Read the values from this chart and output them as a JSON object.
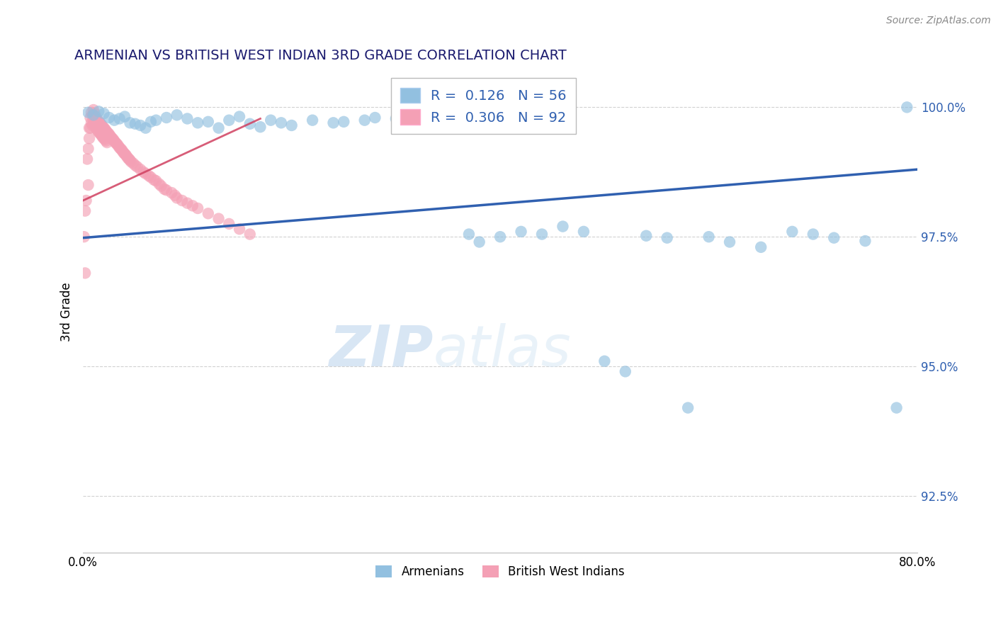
{
  "title": "ARMENIAN VS BRITISH WEST INDIAN 3RD GRADE CORRELATION CHART",
  "source": "Source: ZipAtlas.com",
  "ylabel": "3rd Grade",
  "xlim": [
    0.0,
    0.8
  ],
  "ylim": [
    0.914,
    1.007
  ],
  "yticks": [
    0.925,
    0.95,
    0.975,
    1.0
  ],
  "ytick_labels": [
    "92.5%",
    "95.0%",
    "97.5%",
    "100.0%"
  ],
  "xticks": [
    0.0,
    0.1,
    0.2,
    0.3,
    0.4,
    0.5,
    0.6,
    0.7,
    0.8
  ],
  "blue_color": "#92C0E0",
  "pink_color": "#F4A0B5",
  "trend_blue_color": "#3060B0",
  "trend_pink_color": "#D04060",
  "legend_r_blue": "0.126",
  "legend_n_blue": "56",
  "legend_r_pink": "0.306",
  "legend_n_pink": "92",
  "watermark_zip": "ZIP",
  "watermark_atlas": "atlas",
  "blue_scatter_x": [
    0.005,
    0.01,
    0.015,
    0.02,
    0.025,
    0.03,
    0.035,
    0.04,
    0.045,
    0.05,
    0.055,
    0.06,
    0.065,
    0.07,
    0.08,
    0.09,
    0.1,
    0.11,
    0.12,
    0.13,
    0.14,
    0.15,
    0.16,
    0.17,
    0.18,
    0.19,
    0.2,
    0.22,
    0.24,
    0.25,
    0.27,
    0.28,
    0.3,
    0.32,
    0.35,
    0.37,
    0.38,
    0.4,
    0.42,
    0.44,
    0.46,
    0.48,
    0.5,
    0.52,
    0.54,
    0.56,
    0.58,
    0.6,
    0.62,
    0.65,
    0.68,
    0.7,
    0.72,
    0.75,
    0.78,
    0.79
  ],
  "blue_scatter_y": [
    0.999,
    0.9985,
    0.9992,
    0.9988,
    0.998,
    0.9975,
    0.9978,
    0.9982,
    0.997,
    0.9968,
    0.9965,
    0.996,
    0.9972,
    0.9975,
    0.998,
    0.9985,
    0.9978,
    0.997,
    0.9972,
    0.996,
    0.9975,
    0.9982,
    0.9968,
    0.9962,
    0.9975,
    0.997,
    0.9965,
    0.9975,
    0.997,
    0.9972,
    0.9975,
    0.998,
    0.9978,
    0.9975,
    0.9972,
    0.9755,
    0.974,
    0.975,
    0.976,
    0.9755,
    0.977,
    0.976,
    0.951,
    0.949,
    0.9752,
    0.9748,
    0.942,
    0.975,
    0.974,
    0.973,
    0.976,
    0.9755,
    0.9748,
    0.9742,
    0.942,
    1.0
  ],
  "pink_scatter_x": [
    0.001,
    0.002,
    0.003,
    0.004,
    0.005,
    0.005,
    0.006,
    0.006,
    0.007,
    0.007,
    0.008,
    0.008,
    0.009,
    0.009,
    0.01,
    0.01,
    0.011,
    0.011,
    0.012,
    0.012,
    0.013,
    0.013,
    0.014,
    0.014,
    0.015,
    0.015,
    0.016,
    0.016,
    0.017,
    0.017,
    0.018,
    0.018,
    0.019,
    0.019,
    0.02,
    0.02,
    0.021,
    0.021,
    0.022,
    0.022,
    0.023,
    0.023,
    0.024,
    0.025,
    0.026,
    0.027,
    0.028,
    0.029,
    0.03,
    0.031,
    0.032,
    0.033,
    0.034,
    0.035,
    0.036,
    0.037,
    0.038,
    0.039,
    0.04,
    0.041,
    0.042,
    0.043,
    0.044,
    0.045,
    0.046,
    0.048,
    0.05,
    0.052,
    0.055,
    0.058,
    0.06,
    0.063,
    0.065,
    0.068,
    0.07,
    0.073,
    0.075,
    0.078,
    0.08,
    0.085,
    0.088,
    0.09,
    0.095,
    0.1,
    0.105,
    0.11,
    0.12,
    0.13,
    0.14,
    0.15,
    0.002,
    0.16
  ],
  "pink_scatter_y": [
    0.975,
    0.98,
    0.982,
    0.99,
    0.992,
    0.985,
    0.996,
    0.994,
    0.998,
    0.996,
    0.999,
    0.997,
    0.9985,
    0.9965,
    0.9995,
    0.9975,
    0.9988,
    0.997,
    0.9982,
    0.9962,
    0.9978,
    0.9958,
    0.9975,
    0.9955,
    0.9972,
    0.9952,
    0.997,
    0.995,
    0.9968,
    0.9948,
    0.9965,
    0.9945,
    0.9962,
    0.9942,
    0.996,
    0.994,
    0.9958,
    0.9938,
    0.9955,
    0.9935,
    0.9952,
    0.9932,
    0.995,
    0.9948,
    0.9945,
    0.9942,
    0.994,
    0.9938,
    0.9935,
    0.9932,
    0.993,
    0.9928,
    0.9925,
    0.9922,
    0.992,
    0.9918,
    0.9915,
    0.9912,
    0.991,
    0.9908,
    0.9905,
    0.9902,
    0.99,
    0.9898,
    0.9895,
    0.9892,
    0.9888,
    0.9885,
    0.988,
    0.9875,
    0.9872,
    0.9868,
    0.9865,
    0.986,
    0.9858,
    0.9852,
    0.9848,
    0.9842,
    0.984,
    0.9835,
    0.983,
    0.9825,
    0.982,
    0.9815,
    0.981,
    0.9805,
    0.9795,
    0.9785,
    0.9775,
    0.9765,
    0.968,
    0.9755
  ],
  "blue_trend_x0": 0.0,
  "blue_trend_y0": 0.9748,
  "blue_trend_x1": 0.8,
  "blue_trend_y1": 0.988,
  "pink_trend_x0": 0.0,
  "pink_trend_y0": 0.982,
  "pink_trend_x1": 0.17,
  "pink_trend_y1": 0.9978
}
